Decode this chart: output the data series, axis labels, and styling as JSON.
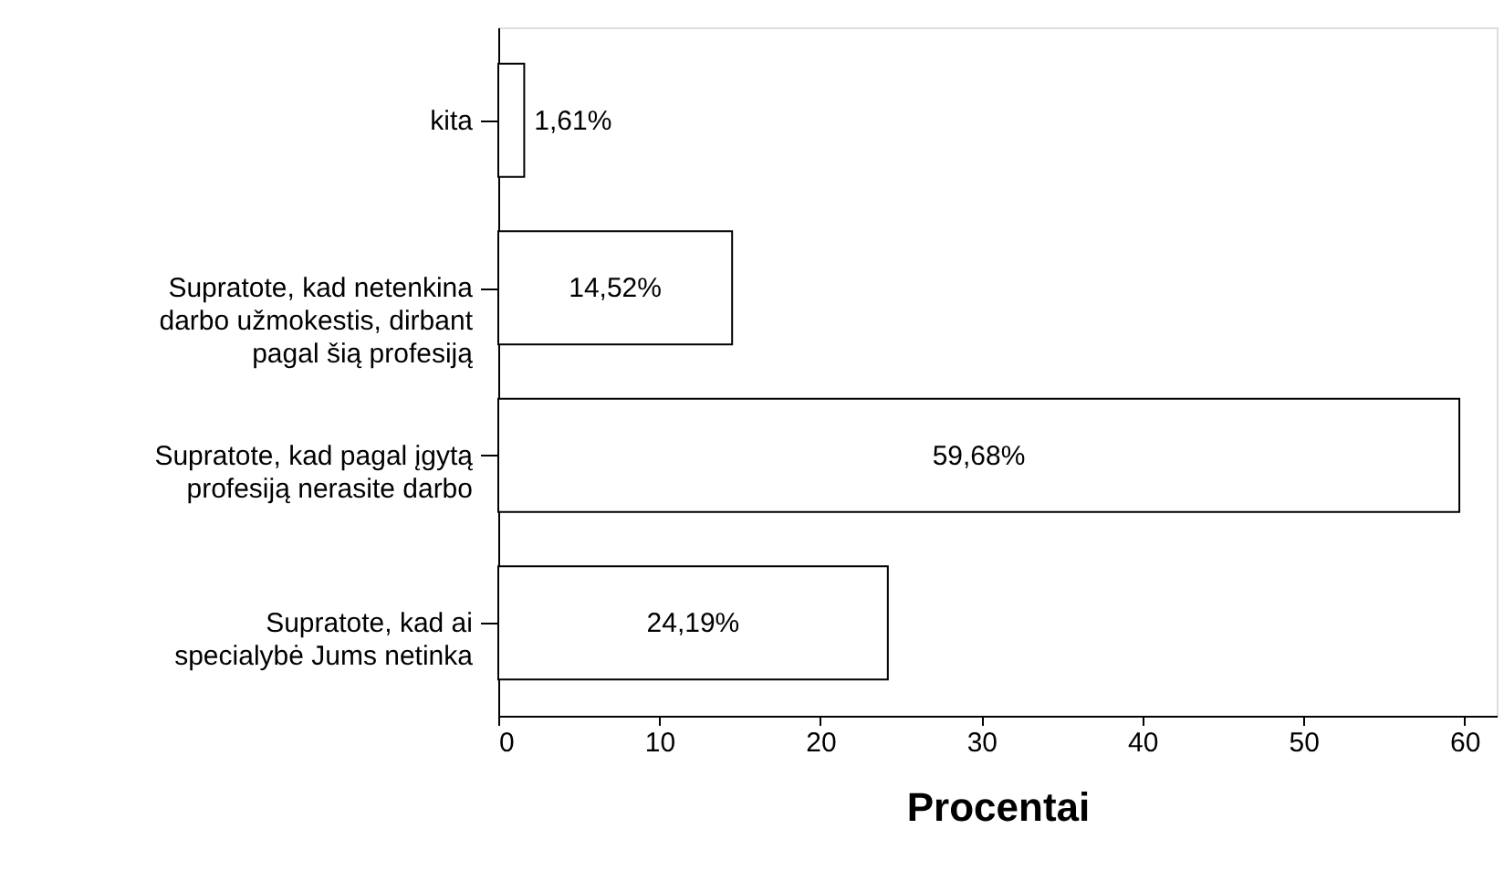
{
  "chart_data": {
    "type": "bar",
    "orientation": "horizontal",
    "xlabel": "Procentai",
    "categories": [
      "kita",
      "Supratote, kad netenkina darbo užmokestis, dirbant pagal šią profesiją",
      "Supratote, kad pagal įgytą profesiją nerasite darbo",
      "Supratote, kad ai specialybė Jums netinka"
    ],
    "values": [
      1.61,
      14.52,
      59.68,
      24.19
    ],
    "value_labels": [
      "1,61%",
      "14,52%",
      "59,68%",
      "24,19%"
    ],
    "color": "#ffffff",
    "xlim": [
      0,
      62
    ],
    "xticks": [
      0,
      10,
      20,
      30,
      40,
      50,
      60
    ],
    "grid": false
  }
}
